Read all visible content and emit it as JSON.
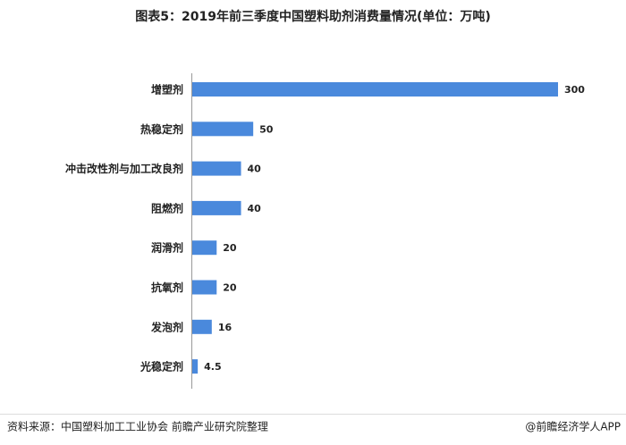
{
  "chart_data": {
    "type": "bar",
    "orientation": "horizontal",
    "title": "图表5：2019年前三季度中国塑料助剂消费量情况(单位：万吨)",
    "categories": [
      "增塑剂",
      "热稳定剂",
      "冲击改性剂与加工改良剂",
      "阻燃剂",
      "润滑剂",
      "抗氧剂",
      "发泡剂",
      "光稳定剂"
    ],
    "values": [
      300,
      50,
      40,
      40,
      20,
      20,
      16,
      4.5
    ],
    "color": "#4a89dc"
  },
  "footer": {
    "source": "资料来源：中国塑料加工工业协会 前瞻产业研究院整理",
    "brand": "@前瞻经济学人APP"
  }
}
